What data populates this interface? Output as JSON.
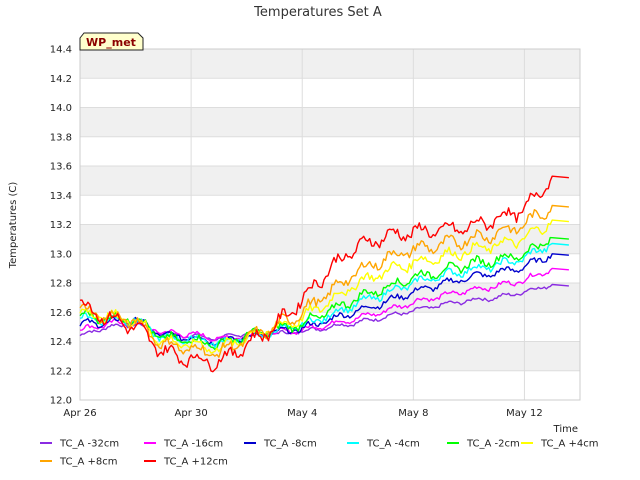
{
  "chart_data": {
    "type": "line",
    "title": "Temperatures Set A",
    "xlabel": "Time",
    "ylabel": "Temperatures (C)",
    "badge": "WP_met",
    "ylim": [
      12.0,
      14.4
    ],
    "yticks": [
      12.0,
      12.2,
      12.4,
      12.6,
      12.8,
      13.0,
      13.2,
      13.4,
      13.6,
      13.8,
      14.0,
      14.2,
      14.4
    ],
    "ytick_labels": [
      "12.0",
      "12.2",
      "12.4",
      "12.6",
      "12.8",
      "13.0",
      "13.2",
      "13.4",
      "13.6",
      "13.8",
      "14.0",
      "14.2",
      "14.4"
    ],
    "xlim": [
      "2023-04-26",
      "2023-05-14"
    ],
    "xticks": [
      "2023-04-26",
      "2023-04-30",
      "2023-05-04",
      "2023-05-08",
      "2023-05-12"
    ],
    "xtick_labels": [
      "Apr 26",
      "Apr 30",
      "May 4",
      "May 8",
      "May 12"
    ],
    "grid": true,
    "legend_placement": "bottom",
    "x": [
      "2023-04-26",
      "2023-04-27",
      "2023-04-28",
      "2023-04-29",
      "2023-04-30",
      "2023-05-01",
      "2023-05-02",
      "2023-05-03",
      "2023-05-04",
      "2023-05-05",
      "2023-05-06",
      "2023-05-07",
      "2023-05-08",
      "2023-05-09",
      "2023-05-10",
      "2023-05-11",
      "2023-05-12",
      "2023-05-13"
    ],
    "series": [
      {
        "name": "TC_A -32cm",
        "color": "#8a2be2",
        "values": [
          12.44,
          12.5,
          12.52,
          12.45,
          12.44,
          12.42,
          12.46,
          12.45,
          12.47,
          12.5,
          12.53,
          12.57,
          12.61,
          12.65,
          12.68,
          12.7,
          12.74,
          12.79
        ]
      },
      {
        "name": "TC_A -16cm",
        "color": "#ff00ff",
        "values": [
          12.48,
          12.52,
          12.54,
          12.46,
          12.45,
          12.42,
          12.44,
          12.46,
          12.48,
          12.52,
          12.56,
          12.61,
          12.67,
          12.71,
          12.75,
          12.78,
          12.82,
          12.9
        ]
      },
      {
        "name": "TC_A -8cm",
        "color": "#0000cd",
        "values": [
          12.52,
          12.53,
          12.55,
          12.44,
          12.43,
          12.4,
          12.43,
          12.46,
          12.49,
          12.55,
          12.61,
          12.67,
          12.74,
          12.79,
          12.84,
          12.87,
          12.91,
          13.0
        ]
      },
      {
        "name": "TC_A -4cm",
        "color": "#00ffff",
        "values": [
          12.56,
          12.55,
          12.55,
          12.42,
          12.42,
          12.39,
          12.43,
          12.47,
          12.51,
          12.58,
          12.66,
          12.73,
          12.8,
          12.85,
          12.89,
          12.92,
          12.97,
          13.07
        ]
      },
      {
        "name": "TC_A -2cm",
        "color": "#00ff00",
        "values": [
          12.58,
          12.56,
          12.56,
          12.42,
          12.41,
          12.38,
          12.44,
          12.48,
          12.52,
          12.61,
          12.7,
          12.77,
          12.84,
          12.88,
          12.93,
          12.96,
          13.0,
          13.11
        ]
      },
      {
        "name": "TC_A +4cm",
        "color": "#ffff00",
        "values": [
          12.6,
          12.57,
          12.55,
          12.4,
          12.38,
          12.35,
          12.43,
          12.49,
          12.56,
          12.68,
          12.8,
          12.88,
          12.94,
          12.98,
          13.02,
          13.06,
          13.1,
          13.23
        ]
      },
      {
        "name": "TC_A +8cm",
        "color": "#ffa500",
        "values": [
          12.62,
          12.57,
          12.54,
          12.38,
          12.35,
          12.32,
          12.42,
          12.5,
          12.6,
          12.74,
          12.88,
          12.97,
          13.03,
          13.06,
          13.1,
          13.14,
          13.2,
          13.33
        ]
      },
      {
        "name": "TC_A +12cm",
        "color": "#ff0000",
        "values": [
          12.66,
          12.56,
          12.5,
          12.33,
          12.28,
          12.26,
          12.38,
          12.5,
          12.69,
          12.9,
          13.05,
          13.12,
          13.15,
          13.16,
          13.18,
          13.24,
          13.3,
          13.53
        ]
      }
    ]
  }
}
